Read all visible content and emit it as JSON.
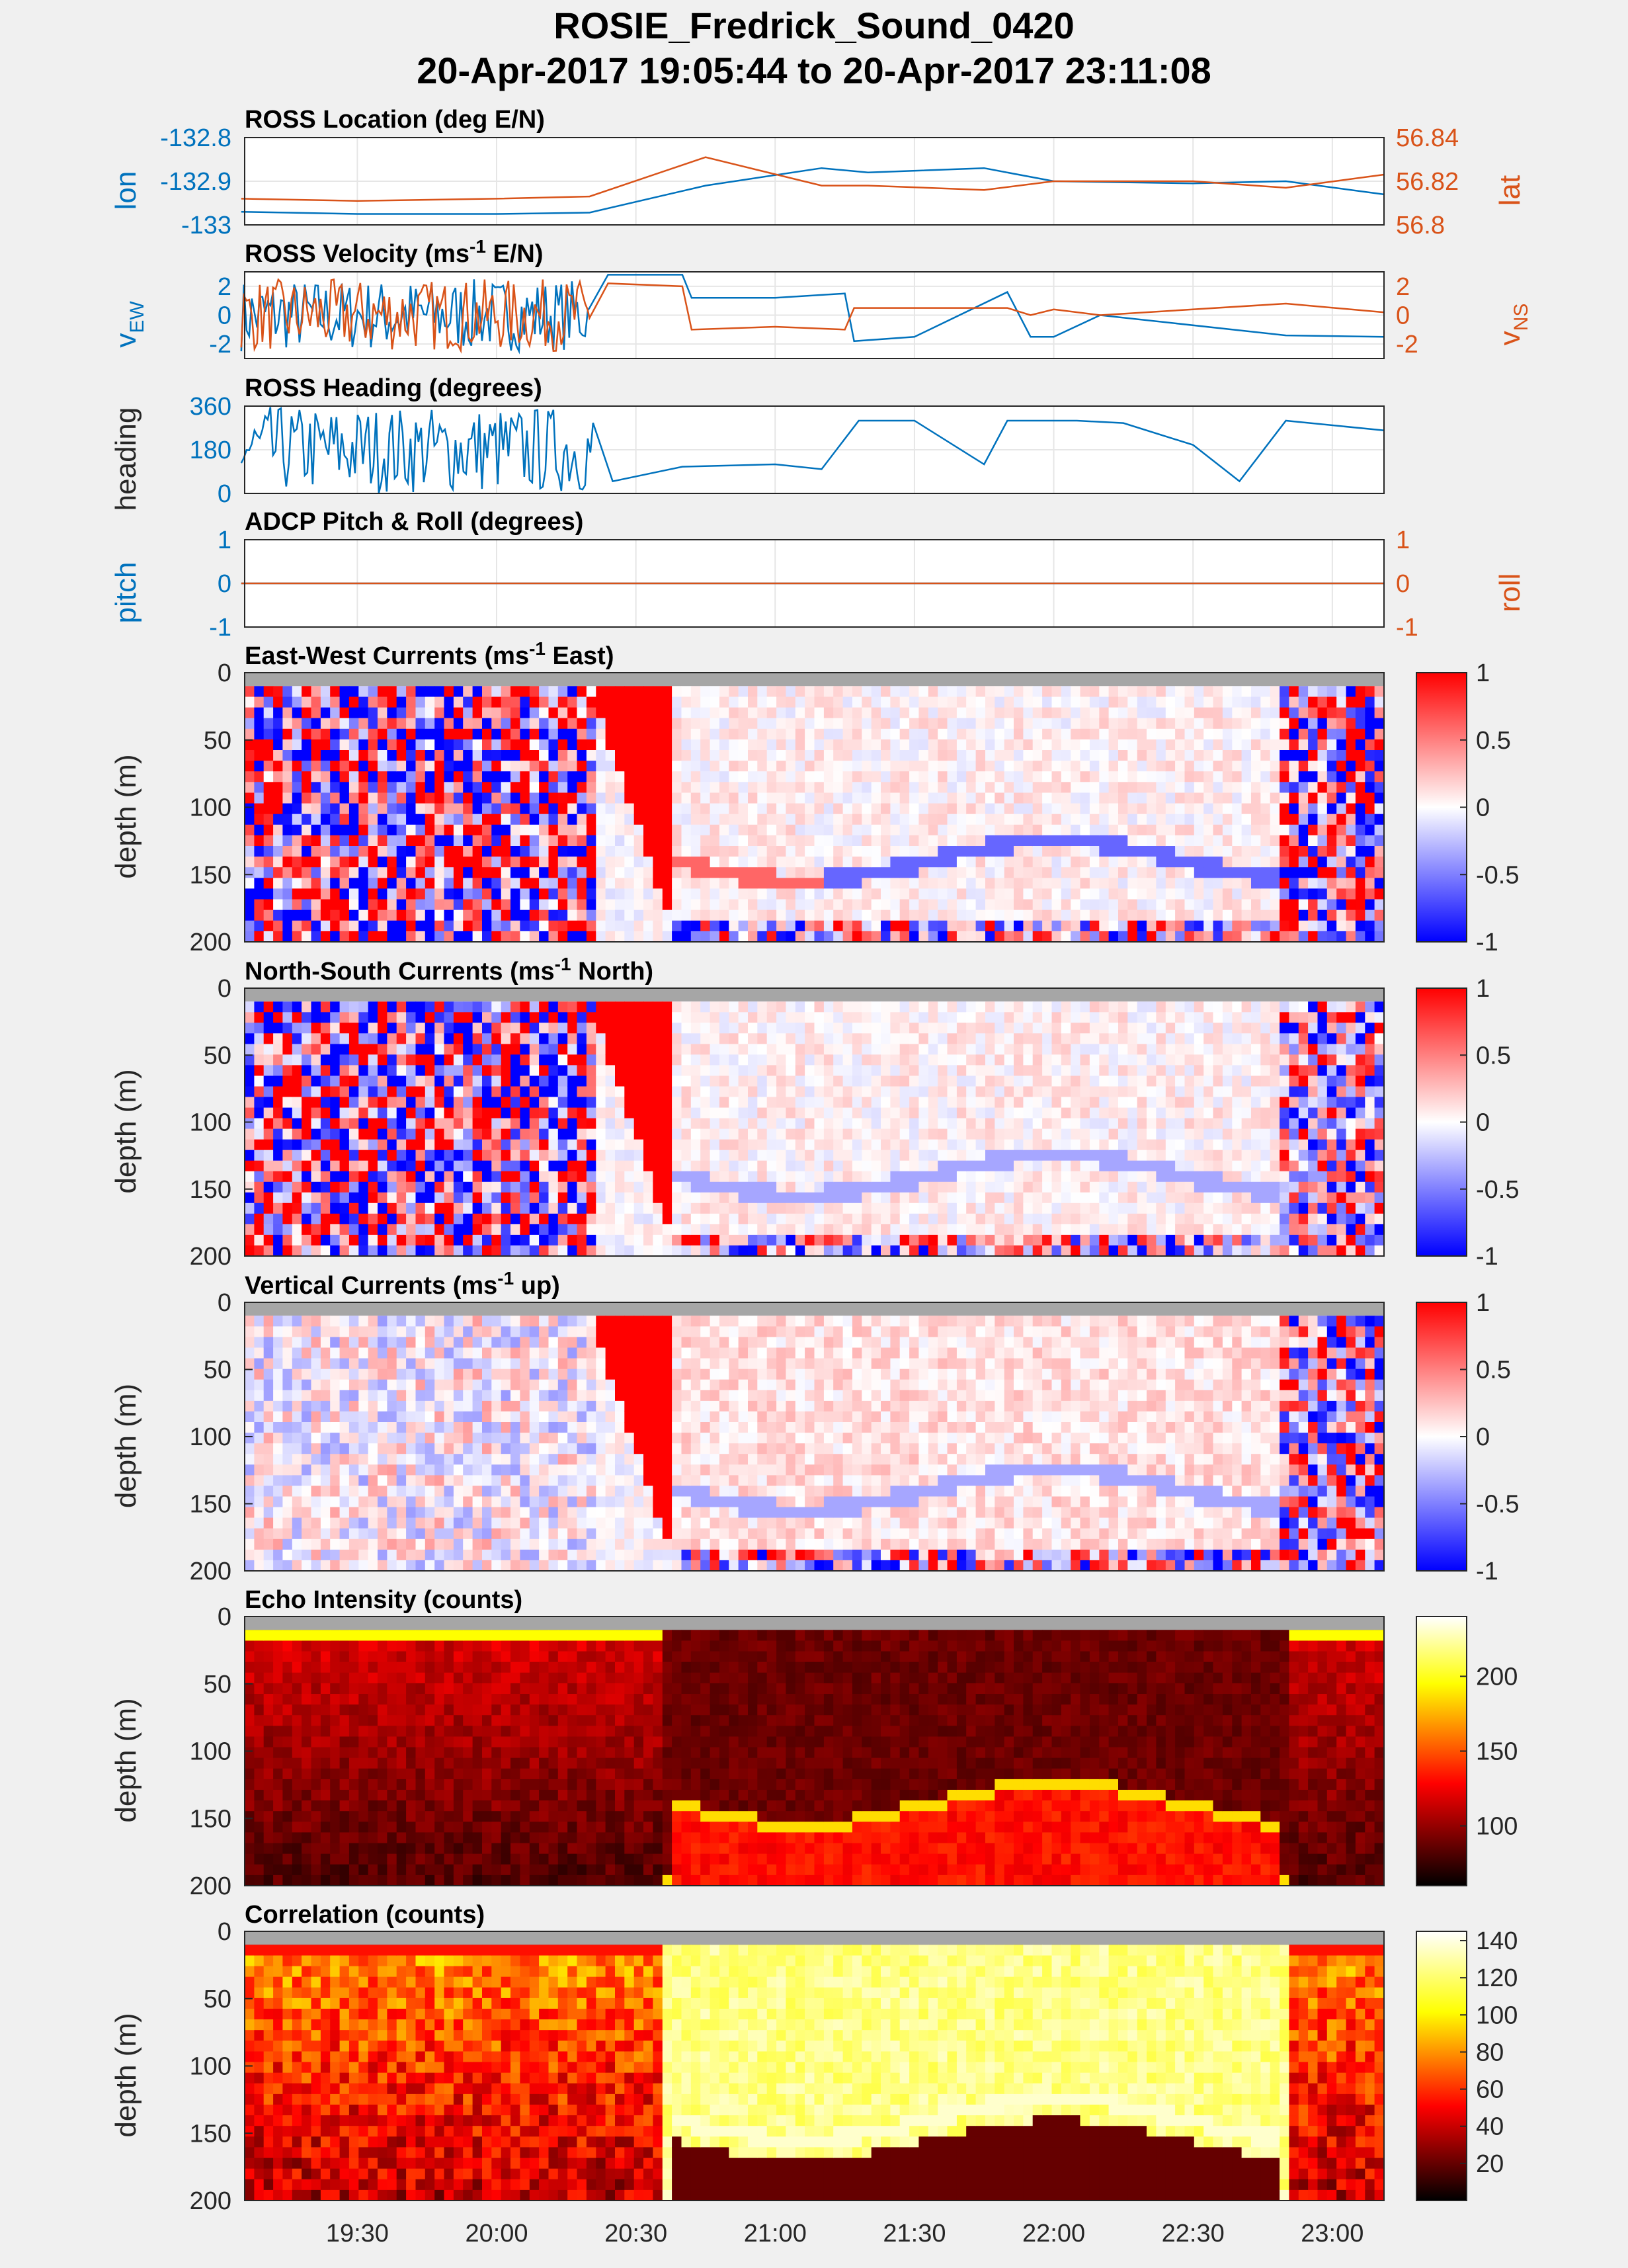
{
  "figure": {
    "title_line1": "ROSIE_Fredrick_Sound_0420",
    "title_line2": "20-Apr-2017 19:05:44 to 20-Apr-2017 23:11:08"
  },
  "colors": {
    "left_axis": "#0072bd",
    "right_axis": "#d95319",
    "diverging_low": "#0000ff",
    "diverging_mid": "#ffffff",
    "diverging_high": "#ff0000",
    "nan_gray": "#a6a6a6",
    "hot_scale": [
      "#000000",
      "#ff0000",
      "#ffff00",
      "#ffffff"
    ]
  },
  "chart_data": [
    {
      "type": "line",
      "title": "ROSS Location (deg E/N)",
      "xlim": [
        "19:05:44",
        "23:11:08"
      ],
      "x_ticks": [
        "19:30",
        "20:00",
        "20:30",
        "21:00",
        "21:30",
        "22:00",
        "22:30",
        "23:00"
      ],
      "grid": true,
      "left_axis": {
        "label": "lon",
        "ylim": [
          -133,
          -132.8
        ],
        "ticks": [
          "-132.8",
          "-132.9",
          "-133"
        ]
      },
      "right_axis": {
        "label": "lat",
        "ylim": [
          56.8,
          56.84
        ],
        "ticks": [
          "56.84",
          "56.82",
          "56.8"
        ]
      },
      "x": [
        "19:05",
        "19:30",
        "20:00",
        "20:20",
        "20:45",
        "21:10",
        "21:20",
        "21:45",
        "22:00",
        "22:30",
        "22:50",
        "23:11"
      ],
      "series": [
        {
          "axis": "left",
          "values": [
            -132.97,
            -132.975,
            -132.975,
            -132.972,
            -132.91,
            -132.87,
            -132.88,
            -132.87,
            -132.9,
            -132.905,
            -132.9,
            -132.93
          ]
        },
        {
          "axis": "right",
          "values": [
            56.812,
            56.811,
            56.812,
            56.813,
            56.831,
            56.818,
            56.818,
            56.816,
            56.82,
            56.82,
            56.817,
            56.823
          ]
        }
      ]
    },
    {
      "type": "line",
      "title": "ROSS Velocity (ms",
      "title_sup": "-1",
      "title_suffix": " E/N)",
      "xlim": [
        "19:05:44",
        "23:11:08"
      ],
      "grid": true,
      "left_axis": {
        "label": "v",
        "label_sub": "EW",
        "ylim": [
          -3,
          3
        ],
        "ticks": [
          "2",
          "0",
          "-2"
        ]
      },
      "right_axis": {
        "label": "v",
        "label_sub": "NS",
        "ylim": [
          -3,
          3
        ],
        "ticks": [
          "2",
          "0",
          "-2"
        ]
      },
      "x": [
        "19:05",
        "20:20",
        "20:24",
        "20:40",
        "20:42",
        "21:00",
        "21:15",
        "21:17",
        "21:30",
        "21:50",
        "21:55",
        "22:00",
        "22:10",
        "22:50",
        "23:11"
      ],
      "series": [
        {
          "axis": "left",
          "segments": [
            [
              "19:05",
              "20:20",
              "noisy",
              0,
              2.5
            ]
          ],
          "values": [
            0.5,
            0.5,
            2.8,
            2.8,
            1.2,
            1.2,
            1.5,
            -1.8,
            -1.5,
            1.6,
            -1.5,
            -1.5,
            0.0,
            -1.4,
            -1.5
          ]
        },
        {
          "axis": "right",
          "segments": [
            [
              "19:05",
              "20:20",
              "noisy",
              0,
              2.5
            ]
          ],
          "values": [
            -0.2,
            -0.2,
            2.2,
            2.0,
            -1.0,
            -0.8,
            -1.0,
            0.5,
            0.5,
            0.5,
            0.0,
            0.4,
            0.0,
            0.8,
            0.2
          ]
        }
      ]
    },
    {
      "type": "line",
      "title": "ROSS Heading (degrees)",
      "xlim": [
        "19:05:44",
        "23:11:08"
      ],
      "grid": true,
      "left_axis": {
        "label": "heading",
        "ylim": [
          0,
          360
        ],
        "ticks": [
          "360",
          "180",
          "0"
        ]
      },
      "x": [
        "19:05",
        "20:20",
        "20:25",
        "20:40",
        "21:00",
        "21:10",
        "21:18",
        "21:30",
        "21:45",
        "21:50",
        "22:05",
        "22:15",
        "22:30",
        "22:40",
        "22:50",
        "23:11"
      ],
      "series": [
        {
          "axis": "left",
          "segments": [
            [
              "19:05",
              "20:21",
              "noisy",
              180,
              180
            ]
          ],
          "values": [
            180,
            180,
            50,
            110,
            120,
            100,
            300,
            300,
            120,
            300,
            300,
            290,
            200,
            50,
            300,
            260
          ]
        }
      ]
    },
    {
      "type": "line",
      "title": "ADCP Pitch & Roll (degrees)",
      "xlim": [
        "19:05:44",
        "23:11:08"
      ],
      "grid": true,
      "left_axis": {
        "label": "pitch",
        "ylim": [
          -1,
          1
        ],
        "ticks": [
          "1",
          "0",
          "-1"
        ]
      },
      "right_axis": {
        "label": "roll",
        "ylim": [
          -1,
          1
        ],
        "ticks": [
          "1",
          "0",
          "-1"
        ]
      },
      "x": [
        "19:05",
        "23:11"
      ],
      "series": [
        {
          "axis": "left",
          "values": [
            0,
            0
          ]
        },
        {
          "axis": "right",
          "values": [
            0,
            0
          ]
        }
      ]
    },
    {
      "type": "heatmap",
      "title": "East-West Currents (ms",
      "title_sup": "-1",
      "title_suffix": " East)",
      "ylabel": "depth (m)",
      "ylim": [
        0,
        200
      ],
      "y_ticks": [
        "0",
        "50",
        "100",
        "150",
        "200"
      ],
      "colormap": "diverging",
      "clim": [
        -1,
        1
      ],
      "colorbar_ticks": [
        "1",
        "0.5",
        "0",
        "-0.5",
        "-1"
      ]
    },
    {
      "type": "heatmap",
      "title": "North-South Currents (ms",
      "title_sup": "-1",
      "title_suffix": " North)",
      "ylabel": "depth (m)",
      "ylim": [
        0,
        200
      ],
      "y_ticks": [
        "0",
        "50",
        "100",
        "150",
        "200"
      ],
      "colormap": "diverging",
      "clim": [
        -1,
        1
      ],
      "colorbar_ticks": [
        "1",
        "0.5",
        "0",
        "-0.5",
        "-1"
      ]
    },
    {
      "type": "heatmap",
      "title": "Vertical Currents (ms",
      "title_sup": "-1",
      "title_suffix": " up)",
      "ylabel": "depth (m)",
      "ylim": [
        0,
        200
      ],
      "y_ticks": [
        "0",
        "50",
        "100",
        "150",
        "200"
      ],
      "colormap": "diverging",
      "clim": [
        -1,
        1
      ],
      "colorbar_ticks": [
        "1",
        "0.5",
        "0",
        "-0.5",
        "-1"
      ]
    },
    {
      "type": "heatmap",
      "title": "Echo Intensity (counts)",
      "ylabel": "depth (m)",
      "ylim": [
        0,
        200
      ],
      "y_ticks": [
        "0",
        "50",
        "100",
        "150",
        "200"
      ],
      "colormap": "hot",
      "clim": [
        60,
        240
      ],
      "colorbar_ticks": [
        "200",
        "150",
        "100"
      ]
    },
    {
      "type": "heatmap",
      "title": "Correlation (counts)",
      "ylabel": "depth (m)",
      "ylim": [
        0,
        200
      ],
      "y_ticks": [
        "0",
        "50",
        "100",
        "150",
        "200"
      ],
      "colormap": "hot",
      "clim": [
        0,
        145
      ],
      "colorbar_ticks": [
        "140",
        "120",
        "100",
        "80",
        "60",
        "40",
        "20"
      ],
      "x_ticks": [
        "19:30",
        "20:00",
        "20:30",
        "21:00",
        "21:30",
        "22:00",
        "22:30",
        "23:00"
      ]
    }
  ]
}
